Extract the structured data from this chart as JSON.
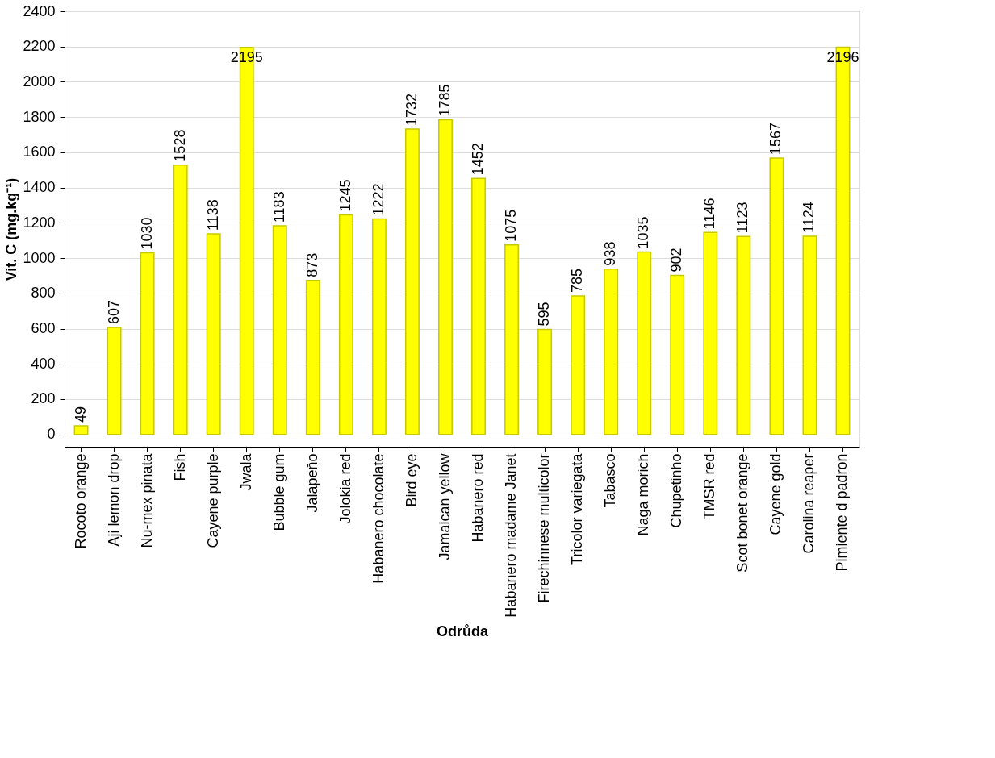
{
  "chart_data": {
    "type": "bar",
    "xlabel": "Odrůda",
    "ylabel": "Vit. C (mg.kg⁻¹)",
    "categories": [
      "Rocoto orange",
      "Aji lemon drop",
      "Nu-mex pinata",
      "Fish",
      "Cayene purple",
      "Jwala",
      "Bubble gum",
      "Jalapeňo",
      "Jolokia red",
      "Habanero chocolate",
      "Bird eye",
      "Jamaican yellow",
      "Habanero red",
      "Habanero madame Janet",
      "Firechinnese multicolor",
      "Tricolor variegata",
      "Tabasco",
      "Naga morich",
      "Chupetinho",
      "TMSR red",
      "Scot bonet orange",
      "Cayene gold",
      "Carolina reaper",
      "Pimiente d padron"
    ],
    "values": [
      49,
      607,
      1030,
      1528,
      1138,
      2195,
      1183,
      873,
      1245,
      1222,
      1732,
      1785,
      1452,
      1075,
      595,
      785,
      938,
      1035,
      902,
      1146,
      1123,
      1567,
      1124,
      2196
    ],
    "color": "#ffff00",
    "ylim": [
      -70,
      2400
    ],
    "yticks": [
      0,
      200,
      400,
      600,
      800,
      1000,
      1200,
      1400,
      1600,
      1800,
      2000,
      2200,
      2400
    ],
    "grid": "y",
    "data_labels": true
  }
}
